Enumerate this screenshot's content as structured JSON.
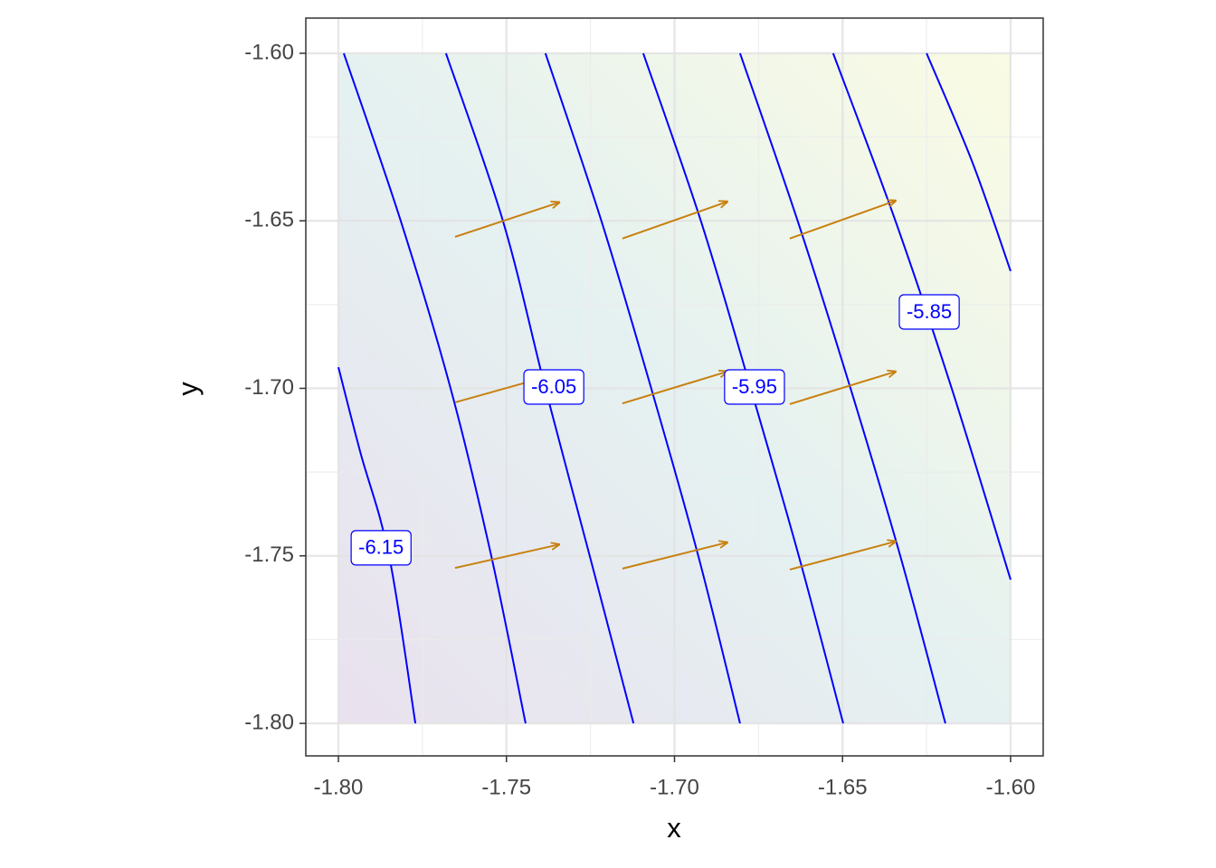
{
  "chart_data": {
    "type": "contour",
    "x_label": "x",
    "y_label": "y",
    "xlim": [
      -1.8097,
      -1.5903
    ],
    "ylim": [
      -1.8097,
      -1.5895
    ],
    "xticks": [
      {
        "value": -1.8,
        "label": "-1.80"
      },
      {
        "value": -1.75,
        "label": "-1.75"
      },
      {
        "value": -1.7,
        "label": "-1.70"
      },
      {
        "value": -1.65,
        "label": "-1.65"
      },
      {
        "value": -1.6,
        "label": "-1.60"
      }
    ],
    "yticks": [
      {
        "value": -1.8,
        "label": "-1.80"
      },
      {
        "value": -1.75,
        "label": "-1.75"
      },
      {
        "value": -1.7,
        "label": "-1.70"
      },
      {
        "value": -1.65,
        "label": "-1.65"
      },
      {
        "value": -1.6,
        "label": "-1.60"
      }
    ],
    "grid": true,
    "contour_color": "#0000ff",
    "contours": [
      {
        "label": "-6.15",
        "label_x": -1.7873,
        "label_y": -1.7476,
        "x": [
          -1.8,
          -1.7935,
          -1.7849,
          -1.7771
        ],
        "y": [
          -1.6937,
          -1.719,
          -1.7501,
          -1.8
        ]
      },
      {
        "x": [
          -1.7984,
          -1.7814,
          -1.7666,
          -1.7545,
          -1.7443
        ],
        "y": [
          -1.6,
          -1.6502,
          -1.7001,
          -1.7501,
          -1.8
        ]
      },
      {
        "label": "-6.05",
        "label_x": -1.7359,
        "label_y": -1.6996,
        "x": [
          -1.768,
          -1.751,
          -1.7384,
          -1.7252,
          -1.7122
        ],
        "y": [
          -1.6,
          -1.6502,
          -1.7001,
          -1.7501,
          -1.8
        ]
      },
      {
        "x": [
          -1.7384,
          -1.7217,
          -1.7069,
          -1.6929,
          -1.6805
        ],
        "y": [
          -1.6,
          -1.6502,
          -1.7001,
          -1.7501,
          -1.8
        ]
      },
      {
        "label": "-5.95",
        "label_x": -1.6762,
        "label_y": -1.6996,
        "x": [
          -1.7093,
          -1.6921,
          -1.6773,
          -1.663,
          -1.6498
        ],
        "y": [
          -1.6,
          -1.6502,
          -1.7001,
          -1.7501,
          -1.8
        ]
      },
      {
        "x": [
          -1.6805,
          -1.6633,
          -1.6476,
          -1.6328,
          -1.6194
        ],
        "y": [
          -1.6,
          -1.6502,
          -1.7001,
          -1.7501,
          -1.8
        ]
      },
      {
        "label": "-5.85",
        "label_x": -1.6242,
        "label_y": -1.6772,
        "x": [
          -1.6528,
          -1.6342,
          -1.6175,
          -1.6
        ],
        "y": [
          -1.6,
          -1.6502,
          -1.7001,
          -1.7571
        ]
      },
      {
        "x": [
          -1.625,
          -1.6113,
          -1.6
        ],
        "y": [
          -1.6,
          -1.6327,
          -1.665
        ]
      }
    ],
    "arrows": {
      "color": "#c8800e",
      "x0": [
        -1.7653,
        -1.7155,
        -1.6657,
        -1.7653,
        -1.7155,
        -1.6657,
        -1.7653,
        -1.7155,
        -1.6657
      ],
      "y0": [
        -1.6548,
        -1.6553,
        -1.6553,
        -1.7042,
        -1.7045,
        -1.7047,
        -1.7536,
        -1.7538,
        -1.7541
      ],
      "x1": [
        -1.7343,
        -1.6843,
        -1.6342,
        -1.7343,
        -1.6843,
        -1.6342,
        -1.7343,
        -1.6843,
        -1.6342
      ],
      "y1": [
        -1.6445,
        -1.6443,
        -1.644,
        -1.6955,
        -1.695,
        -1.695,
        -1.7466,
        -1.746,
        -1.7457
      ]
    }
  }
}
